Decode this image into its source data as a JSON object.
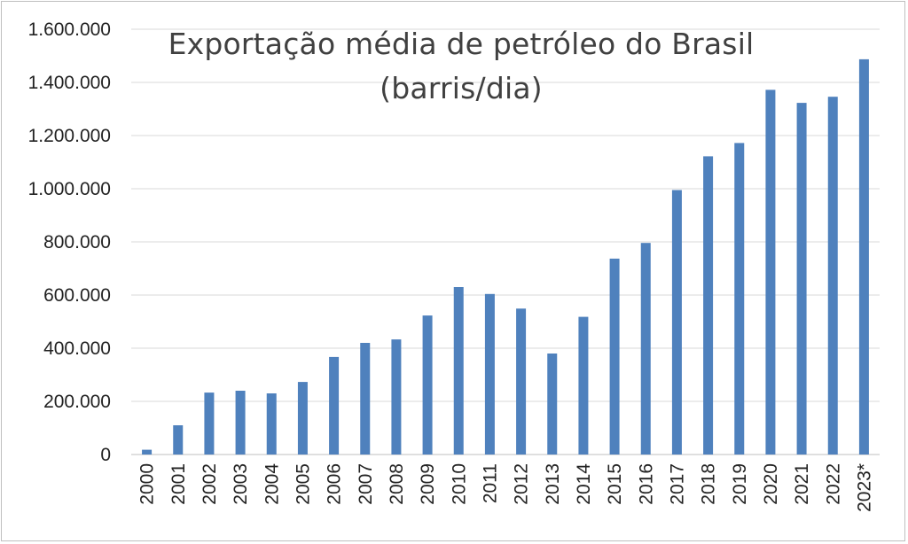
{
  "chart_data": {
    "type": "bar",
    "title": "Exportação média de petróleo do Brasil (barris/dia)",
    "title_lines": [
      "Exportação média de petróleo do Brasil",
      "(barris/dia)"
    ],
    "xlabel": "",
    "ylabel": "",
    "categories": [
      "2000",
      "2001",
      "2002",
      "2003",
      "2004",
      "2005",
      "2006",
      "2007",
      "2008",
      "2009",
      "2010",
      "2011",
      "2012",
      "2013",
      "2014",
      "2015",
      "2016",
      "2017",
      "2018",
      "2019",
      "2020",
      "2021",
      "2022",
      "2023*"
    ],
    "values": [
      18000,
      110000,
      233000,
      240000,
      230000,
      273000,
      367000,
      420000,
      433000,
      523000,
      630000,
      604000,
      549000,
      380000,
      518000,
      737000,
      796000,
      995000,
      1122000,
      1172000,
      1372000,
      1323000,
      1346000,
      1487000
    ],
    "ylim": [
      0,
      1600000
    ],
    "yticks": [
      0,
      200000,
      400000,
      600000,
      800000,
      1000000,
      1200000,
      1400000,
      1600000
    ],
    "ytick_labels": [
      "0",
      "200.000",
      "400.000",
      "600.000",
      "800.000",
      "1.000.000",
      "1.200.000",
      "1.400.000",
      "1.600.000"
    ],
    "grid": true,
    "legend": "none",
    "bar_color": "#4f81bd",
    "grid_color": "#d9d9d9"
  }
}
